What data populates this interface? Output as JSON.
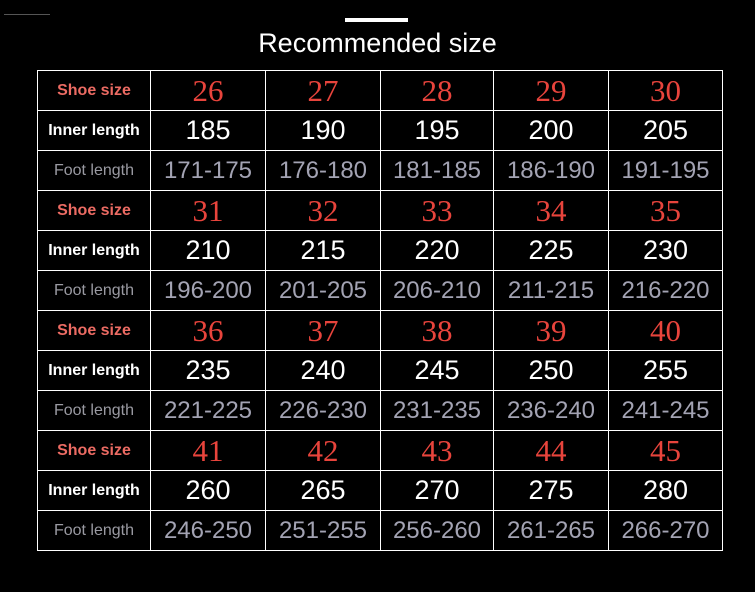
{
  "title": "Recommended size",
  "table": {
    "rows": [
      [
        "Shoe size",
        "26",
        "27",
        "28",
        "29",
        "30"
      ],
      [
        "Inner length",
        "185",
        "190",
        "195",
        "200",
        "205"
      ],
      [
        "Foot length",
        "171-175",
        "176-180",
        "181-185",
        "186-190",
        "191-195"
      ],
      [
        "Shoe size",
        "31",
        "32",
        "33",
        "34",
        "35"
      ],
      [
        "Inner length",
        "210",
        "215",
        "220",
        "225",
        "230"
      ],
      [
        "Foot length",
        "196-200",
        "201-205",
        "206-210",
        "211-215",
        "216-220"
      ],
      [
        "Shoe size",
        "36",
        "37",
        "38",
        "39",
        "40"
      ],
      [
        "Inner length",
        "235",
        "240",
        "245",
        "250",
        "255"
      ],
      [
        "Foot length",
        "221-225",
        "226-230",
        "231-235",
        "236-240",
        "241-245"
      ],
      [
        "Shoe size",
        "41",
        "42",
        "43",
        "44",
        "45"
      ],
      [
        "Inner length",
        "260",
        "265",
        "270",
        "275",
        "280"
      ],
      [
        "Foot length",
        "246-250",
        "251-255",
        "256-260",
        "261-265",
        "266-270"
      ]
    ]
  }
}
